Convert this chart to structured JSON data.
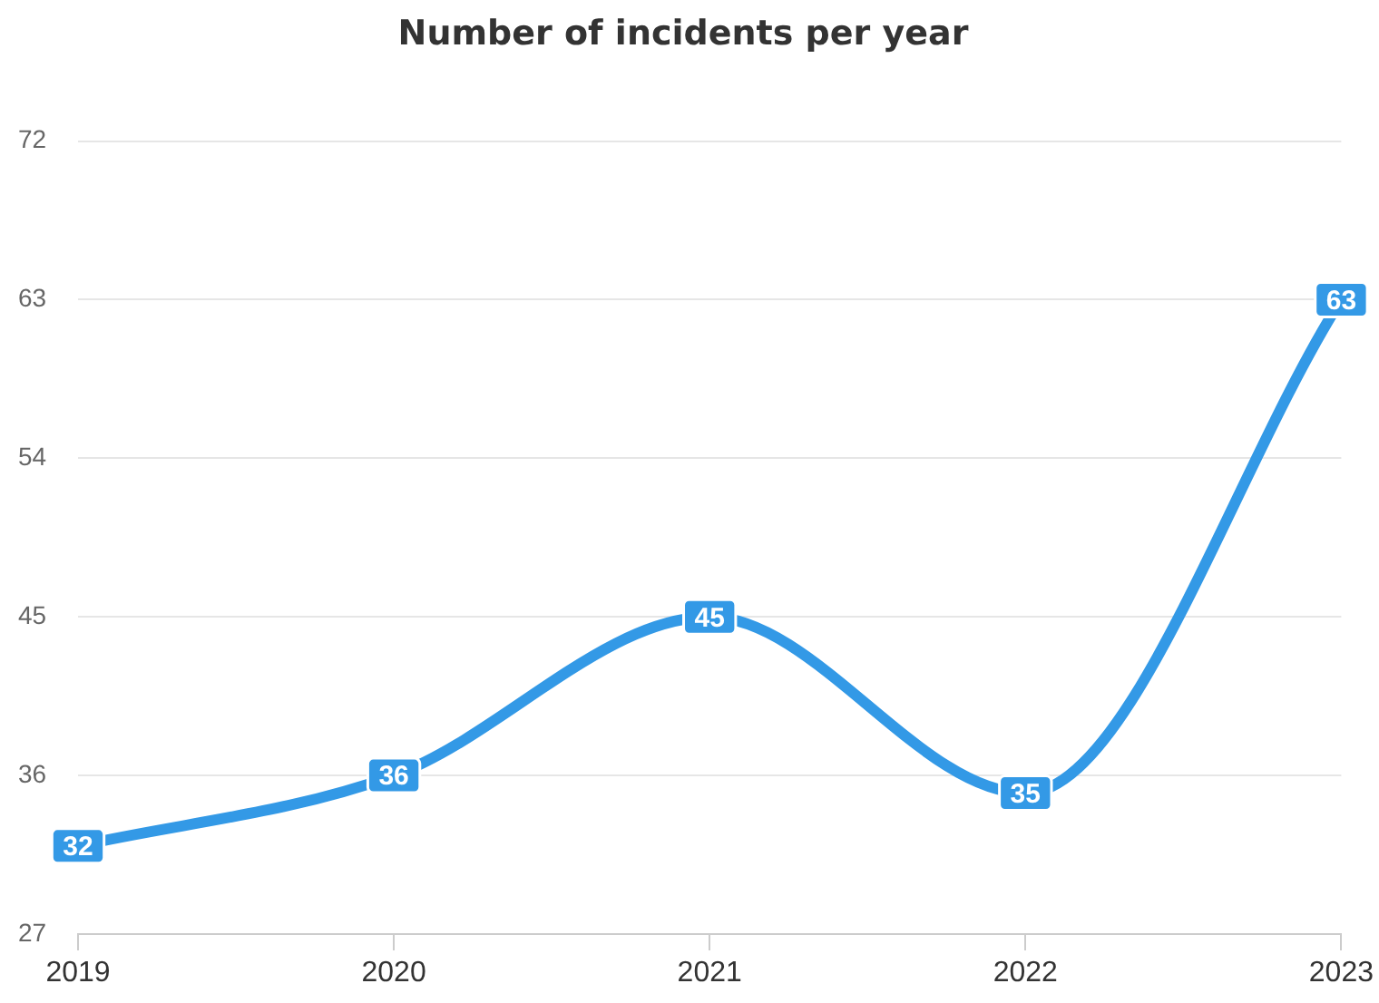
{
  "chart_data": {
    "type": "line",
    "title": "Number of incidents per year",
    "categories": [
      "2019",
      "2020",
      "2021",
      "2022",
      "2023"
    ],
    "series": [
      {
        "color": "#3399e6",
        "values": [
          32,
          36,
          45,
          35,
          63
        ]
      }
    ],
    "ylim": [
      27,
      72
    ],
    "yticks": [
      27,
      36,
      45,
      54,
      63,
      72
    ],
    "grid": "y",
    "marker": "square",
    "data_labels": true
  }
}
